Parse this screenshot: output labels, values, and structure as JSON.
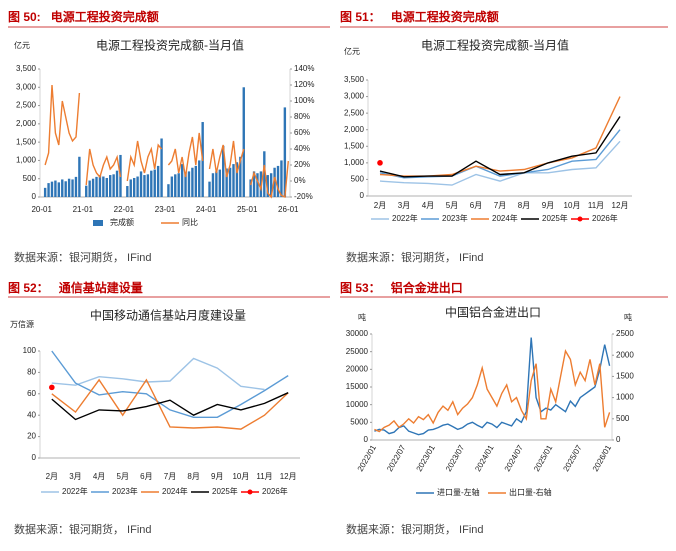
{
  "chart_data": [
    {
      "type": "combo",
      "figure": "图 50:",
      "heading": "电源工程投资完成额",
      "title": "电源工程投资完成额-当月值",
      "y_unit": "亿元",
      "source": "数据来源：银河期货，  IFind",
      "categories": [
        "20-01",
        null,
        null,
        null,
        null,
        null,
        null,
        null,
        null,
        null,
        null,
        null,
        "21-01",
        null,
        null,
        null,
        null,
        null,
        null,
        null,
        null,
        null,
        null,
        null,
        "22-01",
        null,
        null,
        null,
        null,
        null,
        null,
        null,
        null,
        null,
        null,
        null,
        "23-01",
        null,
        null,
        null,
        null,
        null,
        null,
        null,
        null,
        null,
        null,
        null,
        "24-01",
        null,
        null,
        null,
        null,
        null,
        null,
        null,
        null,
        null,
        null,
        null,
        "25-01",
        null,
        null,
        null,
        null,
        null,
        null,
        null,
        null,
        null,
        null,
        null,
        "26-01"
      ],
      "series": [
        {
          "name": "完成额",
          "type": "bar",
          "color": "#2e75b6",
          "values": [
            null,
            250,
            380,
            420,
            450,
            400,
            480,
            430,
            500,
            480,
            550,
            1100,
            null,
            310,
            450,
            500,
            550,
            600,
            560,
            520,
            600,
            620,
            720,
            1150,
            null,
            300,
            480,
            520,
            560,
            700,
            600,
            620,
            720,
            750,
            850,
            1600,
            null,
            350,
            560,
            620,
            650,
            900,
            680,
            700,
            800,
            850,
            1000,
            2050,
            null,
            420,
            650,
            700,
            750,
            1400,
            780,
            800,
            900,
            950,
            1100,
            3000,
            null,
            480,
            700,
            650,
            700,
            1250,
            600,
            650,
            800,
            850,
            1000,
            2450,
            null
          ]
        },
        {
          "name": "同比",
          "type": "line",
          "axis": "y2",
          "color": "#ed7d31",
          "values": [
            null,
            20,
            35,
            120,
            60,
            45,
            100,
            80,
            60,
            50,
            55,
            110,
            null,
            -5,
            40,
            20,
            10,
            5,
            20,
            30,
            15,
            20,
            30,
            5,
            null,
            0,
            30,
            20,
            50,
            25,
            10,
            30,
            40,
            15,
            45,
            40,
            null,
            20,
            25,
            40,
            10,
            30,
            5,
            35,
            55,
            20,
            60,
            25,
            null,
            15,
            40,
            10,
            30,
            45,
            5,
            20,
            50,
            10,
            25,
            40,
            null,
            -5,
            10,
            0,
            -10,
            20,
            -15,
            -20,
            5,
            -10,
            -18,
            -20,
            25
          ]
        }
      ],
      "ylim": [
        0,
        3500
      ],
      "yticks": [
        0,
        500,
        {
          "value": 1000,
          "label": "1,000"
        },
        {
          "value": 1500,
          "label": "1,500"
        },
        {
          "value": 2000,
          "label": "2,000"
        },
        {
          "value": 2500,
          "label": "2,500"
        },
        {
          "value": 3000,
          "label": "3,000"
        },
        {
          "value": 3500,
          "label": "3,500"
        }
      ],
      "y2lim": [
        -20,
        140
      ],
      "y2ticks": [
        {
          "value": -20,
          "label": "-20%"
        },
        {
          "value": 0,
          "label": "0%"
        },
        {
          "value": 20,
          "label": "20%"
        },
        {
          "value": 40,
          "label": "40%"
        },
        {
          "value": 60,
          "label": "60%"
        },
        {
          "value": 80,
          "label": "80%"
        },
        {
          "value": 100,
          "label": "100%"
        },
        {
          "value": 120,
          "label": "120%"
        },
        {
          "value": 140,
          "label": "140%"
        }
      ],
      "legend": "bottom"
    },
    {
      "type": "line",
      "figure": "图 51：",
      "heading": "电源工程投资完成额",
      "title": "电源工程投资完成额-当月值",
      "y_unit": "亿元",
      "source": "数据来源：银河期货，  IFind",
      "categories": [
        "2月",
        "3月",
        "4月",
        "5月",
        "6月",
        "7月",
        "8月",
        "9月",
        "10月",
        "11月",
        "12月"
      ],
      "series": [
        {
          "name": "2022年",
          "color": "#9dc3e6",
          "values": [
            450,
            400,
            380,
            330,
            650,
            450,
            700,
            700,
            800,
            850,
            1650
          ]
        },
        {
          "name": "2023年",
          "color": "#5b9bd5",
          "values": [
            700,
            550,
            580,
            600,
            900,
            600,
            700,
            800,
            1050,
            1100,
            2000
          ]
        },
        {
          "name": "2024年",
          "color": "#ed7d31",
          "values": [
            650,
            600,
            600,
            650,
            900,
            750,
            800,
            1000,
            1150,
            1450,
            3000
          ]
        },
        {
          "name": "2025年",
          "color": "#000000",
          "values": [
            750,
            580,
            600,
            600,
            1050,
            650,
            700,
            1000,
            1200,
            1300,
            2400
          ]
        },
        {
          "name": "2026年",
          "color": "#ff0000",
          "marker": "circle",
          "values": [
            1000,
            null,
            null,
            null,
            null,
            null,
            null,
            null,
            null,
            null,
            null
          ]
        }
      ],
      "ylim": [
        0,
        3500
      ],
      "yticks": [
        0,
        500,
        {
          "value": 1000,
          "label": "1,000"
        },
        {
          "value": 1500,
          "label": "1,500"
        },
        {
          "value": 2000,
          "label": "2,000"
        },
        {
          "value": 2500,
          "label": "2,500"
        },
        {
          "value": 3000,
          "label": "3,000"
        },
        {
          "value": 3500,
          "label": "3,500"
        }
      ],
      "legend": "bottom"
    },
    {
      "type": "line",
      "figure": "图 52：",
      "heading": "通信基站建设量",
      "title": "中国移动通信基站月度建设量",
      "y_unit": "万信源",
      "source": "数据来源：银河期货，  IFind",
      "categories": [
        "2月",
        "3月",
        "4月",
        "5月",
        "6月",
        "7月",
        "8月",
        "9月",
        "10月",
        "11月",
        "12月"
      ],
      "series": [
        {
          "name": "2022年",
          "color": "#9dc3e6",
          "values": [
            70,
            68,
            76,
            74,
            71,
            72,
            93,
            84,
            67,
            64,
            null
          ]
        },
        {
          "name": "2023年",
          "color": "#5b9bd5",
          "values": [
            100,
            70,
            59,
            62,
            60,
            45,
            38,
            38,
            50,
            63,
            77
          ]
        },
        {
          "name": "2024年",
          "color": "#ed7d31",
          "values": [
            60,
            43,
            73,
            40,
            73,
            29,
            28,
            29,
            27,
            40,
            61
          ]
        },
        {
          "name": "2025年",
          "color": "#000000",
          "values": [
            55,
            36,
            45,
            44,
            48,
            54,
            40,
            50,
            45,
            51,
            61
          ]
        },
        {
          "name": "2026年",
          "color": "#ff0000",
          "marker": "circle",
          "values": [
            66,
            null,
            null,
            null,
            null,
            null,
            null,
            null,
            null,
            null,
            null
          ]
        }
      ],
      "ylim": [
        0,
        100
      ],
      "yticks": [
        0,
        20,
        40,
        60,
        80,
        100
      ],
      "legend": "bottom"
    },
    {
      "type": "line",
      "figure": "图 53：",
      "heading": "铝合金进出口",
      "title": "中国铝合金进出口",
      "y_unit": "吨",
      "y2_unit": "吨",
      "source": "数据来源：银河期货，  IFind",
      "categories": [
        "2022/01",
        null,
        null,
        null,
        null,
        null,
        "2022/07",
        null,
        null,
        null,
        null,
        null,
        "2023/01",
        null,
        null,
        null,
        null,
        null,
        "2023/07",
        null,
        null,
        null,
        null,
        null,
        "2024/01",
        null,
        null,
        null,
        null,
        null,
        "2024/07",
        null,
        null,
        null,
        null,
        null,
        "2025/01",
        null,
        null,
        null,
        null,
        null,
        "2025/07",
        null,
        null,
        null,
        null,
        null,
        "2026/01"
      ],
      "series": [
        {
          "name": "进口量-左轴",
          "color": "#2e75b6",
          "values": [
            2500,
            3000,
            2800,
            1800,
            2200,
            3500,
            4000,
            2500,
            2000,
            1500,
            1800,
            2800,
            3000,
            3500,
            4200,
            4500,
            3800,
            3000,
            3500,
            4500,
            5000,
            4200,
            3500,
            5000,
            4500,
            3500,
            5000,
            4500,
            4000,
            6000,
            5000,
            8000,
            29000,
            12000,
            8000,
            9000,
            8500,
            10000,
            9000,
            8000,
            11000,
            9500,
            12000,
            13000,
            14000,
            15000,
            20000,
            27000,
            21000
          ]
        },
        {
          "name": "出口量-右轴",
          "axis": "y2",
          "color": "#ed7d31",
          "values": [
            250,
            200,
            300,
            350,
            450,
            300,
            380,
            500,
            400,
            550,
            480,
            600,
            400,
            650,
            800,
            700,
            900,
            600,
            750,
            850,
            1000,
            1300,
            1700,
            1200,
            1000,
            800,
            1100,
            1300,
            900,
            1000,
            700,
            500,
            1400,
            1800,
            500,
            500,
            1200,
            900,
            1500,
            2100,
            1900,
            1300,
            1600,
            1400,
            1900,
            1300,
            1800,
            300,
            650
          ]
        }
      ],
      "ylim": [
        0,
        30000
      ],
      "yticks": [
        0,
        5000,
        10000,
        15000,
        20000,
        25000,
        30000
      ],
      "y2lim": [
        0,
        2500
      ],
      "y2ticks": [
        0,
        500,
        1000,
        1500,
        2000,
        2500
      ],
      "x_label_rotate": true,
      "legend": "bottom"
    }
  ]
}
